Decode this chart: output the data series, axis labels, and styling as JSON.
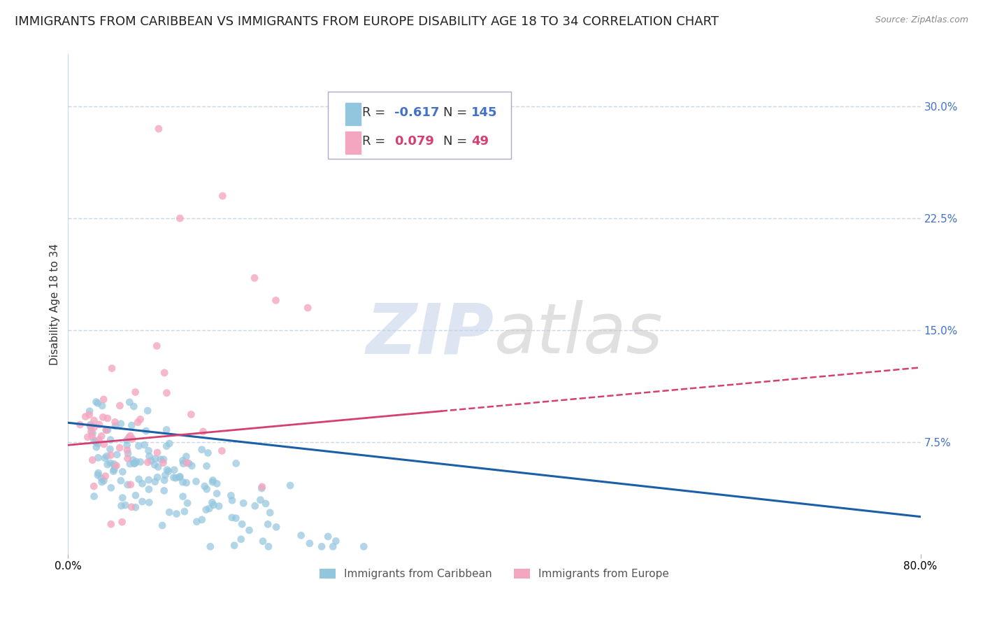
{
  "title": "IMMIGRANTS FROM CARIBBEAN VS IMMIGRANTS FROM EUROPE DISABILITY AGE 18 TO 34 CORRELATION CHART",
  "source": "Source: ZipAtlas.com",
  "ylabel": "Disability Age 18 to 34",
  "ytick_vals": [
    0.075,
    0.15,
    0.225,
    0.3
  ],
  "ytick_labels": [
    "7.5%",
    "15.0%",
    "22.5%",
    "30.0%"
  ],
  "xlim": [
    0.0,
    0.8
  ],
  "ylim": [
    0.0,
    0.335
  ],
  "caribbean_R": -0.617,
  "caribbean_N": 145,
  "europe_R": 0.079,
  "europe_N": 49,
  "caribbean_color": "#92c5de",
  "europe_color": "#f4a6c0",
  "trendline_caribbean_color": "#1a5fa8",
  "trendline_europe_color": "#d44070",
  "background_color": "#ffffff",
  "grid_color": "#c8d8ea",
  "ytick_color": "#4472c4",
  "title_fontsize": 13,
  "axis_label_fontsize": 11,
  "tick_fontsize": 11,
  "legend_fontsize": 13,
  "watermark_zip_color": "#c5d5e8",
  "watermark_atlas_color": "#c8c8c8"
}
